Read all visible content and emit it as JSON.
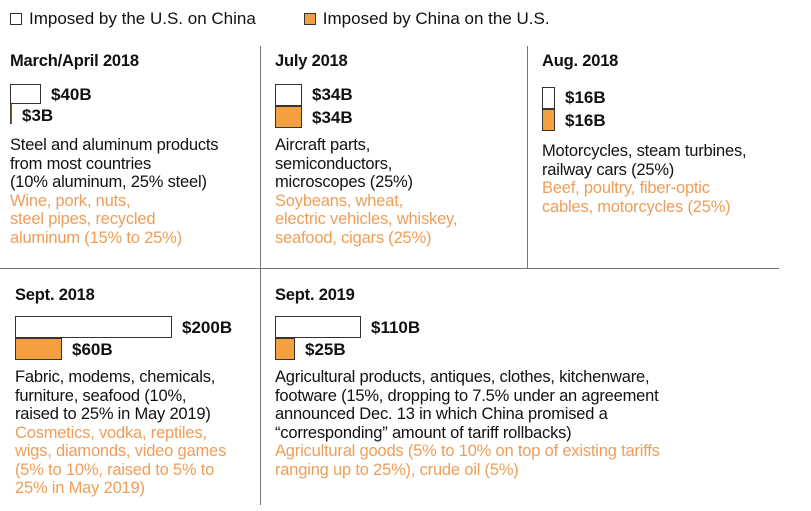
{
  "colors": {
    "us": "#ffffff",
    "china": "#F4A040",
    "china_text": "#EE9E58"
  },
  "legend": {
    "us": "Imposed by the U.S. on China",
    "china": "Imposed by China on the U.S."
  },
  "chart_data": {
    "type": "bar",
    "title": "",
    "unit": "billion USD",
    "categories": [
      "March/April 2018",
      "July 2018",
      "Aug. 2018",
      "Sept. 2018",
      "Sept. 2019"
    ],
    "series": [
      {
        "name": "Imposed by the U.S. on China",
        "values": [
          40,
          34,
          16,
          200,
          110
        ]
      },
      {
        "name": "Imposed by China on the U.S.",
        "values": [
          3,
          34,
          16,
          60,
          25
        ]
      }
    ]
  },
  "panels": [
    {
      "title": "March/April 2018",
      "us_label": "$40B",
      "cn_label": "$3B",
      "us_text": [
        "Steel and aluminum products",
        "from most countries",
        "(10% aluminum, 25% steel)"
      ],
      "cn_text": [
        "Wine, pork, nuts,",
        "steel pipes, recycled",
        "aluminum (15% to 25%)"
      ]
    },
    {
      "title": "July 2018",
      "us_label": "$34B",
      "cn_label": "$34B",
      "us_text": [
        "Aircraft parts,",
        "semiconductors,",
        "microscopes (25%)"
      ],
      "cn_text": [
        "Soybeans, wheat,",
        "electric vehicles, whiskey,",
        "seafood, cigars (25%)"
      ]
    },
    {
      "title": "Aug. 2018",
      "us_label": "$16B",
      "cn_label": "$16B",
      "us_text": [
        "Motorcycles, steam turbines,",
        "railway cars (25%)"
      ],
      "cn_text": [
        "Beef, poultry, fiber-optic",
        "cables, motorcycles (25%)"
      ]
    },
    {
      "title": "Sept. 2018",
      "us_label": "$200B",
      "cn_label": "$60B",
      "us_text": [
        "Fabric, modems, chemicals,",
        "furniture, seafood (10%,",
        "raised to 25% in May 2019)"
      ],
      "cn_text": [
        "Cosmetics, vodka, reptiles,",
        "wigs, diamonds, video games",
        "(5% to 10%, raised to 5% to",
        "25% in May 2019)"
      ]
    },
    {
      "title": "Sept. 2019",
      "us_label": "$110B",
      "cn_label": "$25B",
      "us_text": [
        "Agricultural products, antiques, clothes, kitchenware,",
        "footware (15%, dropping to 7.5% under an agreement",
        "announced Dec. 13 in which China promised a",
        "“corresponding” amount of tariff rollbacks)"
      ],
      "cn_text": [
        "Agricultural goods (5% to 10% on top of existing tariffs",
        "ranging up to 25%), crude oil (5%)"
      ]
    }
  ]
}
